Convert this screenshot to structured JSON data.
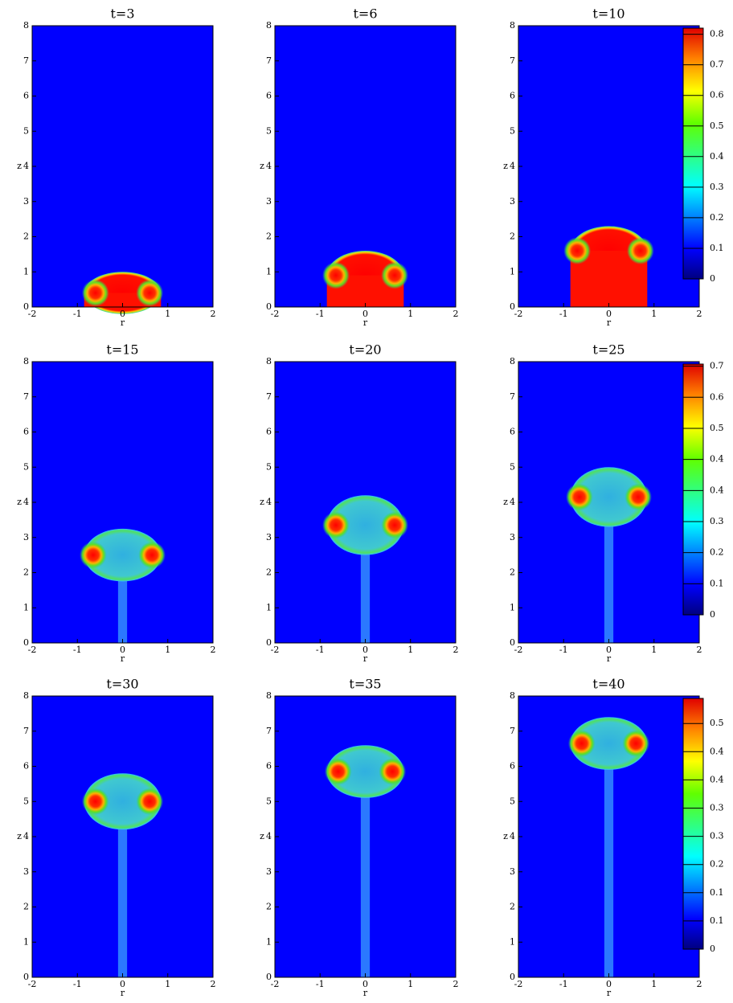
{
  "chart_data": [
    {
      "type": "contour",
      "title": "t=3",
      "xlabel": "r",
      "ylabel": "z",
      "xlim": [
        -2,
        2
      ],
      "ylim": [
        0,
        8
      ],
      "xticks": [
        -2,
        -1,
        0,
        1,
        2
      ],
      "yticks": [
        0,
        1,
        2,
        3,
        4,
        5,
        6,
        7,
        8
      ],
      "cap_top": 1.0,
      "vortex_r": [
        -0.6,
        0.6
      ],
      "vortex_z": [
        0.4,
        0.4
      ]
    },
    {
      "type": "contour",
      "title": "t=6",
      "xlabel": "r",
      "ylabel": "z",
      "xlim": [
        -2,
        2
      ],
      "ylim": [
        0,
        8
      ],
      "xticks": [
        -2,
        -1,
        0,
        1,
        2
      ],
      "yticks": [
        0,
        1,
        2,
        3,
        4,
        5,
        6,
        7,
        8
      ],
      "cap_top": 1.6,
      "vortex_r": [
        -0.65,
        0.65
      ],
      "vortex_z": [
        0.9,
        0.9
      ]
    },
    {
      "type": "contour",
      "title": "t=10",
      "xlabel": "r",
      "ylabel": "z",
      "xlim": [
        -2,
        2
      ],
      "ylim": [
        0,
        8
      ],
      "xticks": [
        -2,
        -1,
        0,
        1,
        2
      ],
      "yticks": [
        0,
        1,
        2,
        3,
        4,
        5,
        6,
        7,
        8
      ],
      "cap_top": 2.3,
      "vortex_r": [
        -0.7,
        0.7
      ],
      "vortex_z": [
        1.6,
        1.6
      ],
      "colorbar": {
        "clim": [
          0,
          0.82
        ],
        "ticks": [
          0,
          0.1,
          0.2,
          0.3,
          0.4,
          0.5,
          0.6,
          0.7,
          0.8
        ]
      }
    },
    {
      "type": "contour",
      "title": "t=15",
      "xlabel": "r",
      "ylabel": "z",
      "xlim": [
        -2,
        2
      ],
      "ylim": [
        0,
        8
      ],
      "xticks": [
        -2,
        -1,
        0,
        1,
        2
      ],
      "yticks": [
        0,
        1,
        2,
        3,
        4,
        5,
        6,
        7,
        8
      ],
      "cap_top": 3.25,
      "vortex_r": [
        -0.65,
        0.65
      ],
      "vortex_z": [
        2.5,
        2.5
      ]
    },
    {
      "type": "contour",
      "title": "t=20",
      "xlabel": "r",
      "ylabel": "z",
      "xlim": [
        -2,
        2
      ],
      "ylim": [
        0,
        8
      ],
      "xticks": [
        -2,
        -1,
        0,
        1,
        2
      ],
      "yticks": [
        0,
        1,
        2,
        3,
        4,
        5,
        6,
        7,
        8
      ],
      "cap_top": 4.2,
      "vortex_r": [
        -0.65,
        0.65
      ],
      "vortex_z": [
        3.35,
        3.35
      ]
    },
    {
      "type": "contour",
      "title": "t=25",
      "xlabel": "r",
      "ylabel": "z",
      "xlim": [
        -2,
        2
      ],
      "ylim": [
        0,
        8
      ],
      "xticks": [
        -2,
        -1,
        0,
        1,
        2
      ],
      "yticks": [
        0,
        1,
        2,
        3,
        4,
        5,
        6,
        7,
        8
      ],
      "cap_top": 5.0,
      "vortex_r": [
        -0.65,
        0.65
      ],
      "vortex_z": [
        4.15,
        4.15
      ],
      "colorbar": {
        "clim": [
          0,
          0.71
        ],
        "ticks": [
          0,
          {
            "value": 0.088,
            "label": "0.1"
          },
          {
            "value": 0.176,
            "label": "0.2"
          },
          {
            "value": 0.264,
            "label": "0.3"
          },
          {
            "value": 0.352,
            "label": "0.4"
          },
          {
            "value": 0.44,
            "label": "0.4"
          },
          {
            "value": 0.528,
            "label": "0.5"
          },
          {
            "value": 0.616,
            "label": "0.6"
          },
          {
            "value": 0.704,
            "label": "0.7"
          }
        ]
      }
    },
    {
      "type": "contour",
      "title": "t=30",
      "xlabel": "r",
      "ylabel": "z",
      "xlim": [
        -2,
        2
      ],
      "ylim": [
        0,
        8
      ],
      "xticks": [
        -2,
        -1,
        0,
        1,
        2
      ],
      "yticks": [
        0,
        1,
        2,
        3,
        4,
        5,
        6,
        7,
        8
      ],
      "cap_top": 5.8,
      "vortex_r": [
        -0.6,
        0.6
      ],
      "vortex_z": [
        5.0,
        5.0
      ]
    },
    {
      "type": "contour",
      "title": "t=35",
      "xlabel": "r",
      "ylabel": "z",
      "xlim": [
        -2,
        2
      ],
      "ylim": [
        0,
        8
      ],
      "xticks": [
        -2,
        -1,
        0,
        1,
        2
      ],
      "yticks": [
        0,
        1,
        2,
        3,
        4,
        5,
        6,
        7,
        8
      ],
      "cap_top": 6.6,
      "vortex_r": [
        -0.6,
        0.6
      ],
      "vortex_z": [
        5.85,
        5.85
      ]
    },
    {
      "type": "contour",
      "title": "t=40",
      "xlabel": "r",
      "ylabel": "z",
      "xlim": [
        -2,
        2
      ],
      "ylim": [
        0,
        8
      ],
      "xticks": [
        -2,
        -1,
        0,
        1,
        2
      ],
      "yticks": [
        0,
        1,
        2,
        3,
        4,
        5,
        6,
        7,
        8
      ],
      "cap_top": 7.4,
      "vortex_r": [
        -0.6,
        0.6
      ],
      "vortex_z": [
        6.65,
        6.65
      ],
      "colorbar": {
        "clim": [
          0,
          0.56
        ],
        "ticks": [
          0,
          {
            "value": 0.063,
            "label": "0.1"
          },
          {
            "value": 0.126,
            "label": "0.1"
          },
          {
            "value": 0.189,
            "label": "0.2"
          },
          {
            "value": 0.252,
            "label": "0.3"
          },
          {
            "value": 0.315,
            "label": "0.3"
          },
          {
            "value": 0.378,
            "label": "0.4"
          },
          {
            "value": 0.441,
            "label": "0.4"
          },
          {
            "value": 0.504,
            "label": "0.5"
          }
        ]
      }
    }
  ]
}
